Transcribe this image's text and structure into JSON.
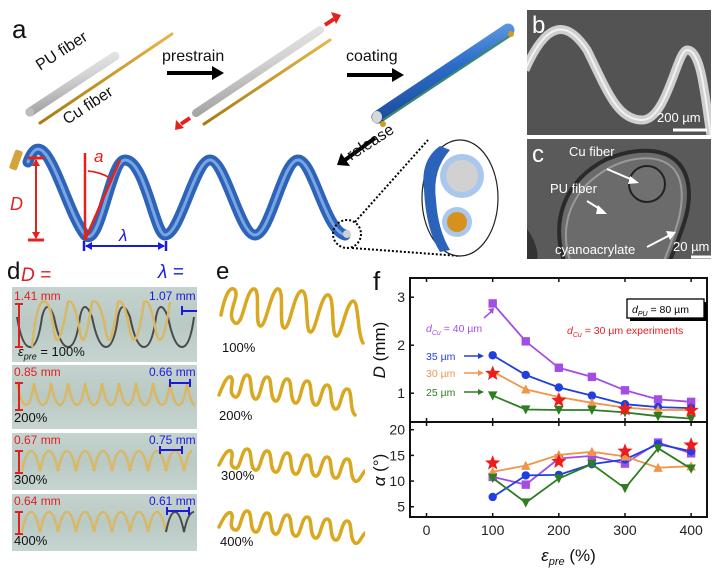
{
  "panel_a": {
    "letter": "a",
    "pu_label": "PU fiber",
    "cu_label": "Cu fiber",
    "step1": "prestrain",
    "step2": "coating",
    "step3": "release",
    "sym_D": "D",
    "sym_alpha": "a",
    "sym_lambda": "λ"
  },
  "panel_b": {
    "letter": "b",
    "scale": "200 µm"
  },
  "panel_c": {
    "letter": "c",
    "cu_label": "Cu fiber",
    "pu_label": "PU fiber",
    "glue_label": "cyanoacrylate",
    "scale": "20 µm"
  },
  "panel_d": {
    "letter": "d",
    "header_D": "D =",
    "header_lambda": "λ =",
    "eps_label_sym": "ε",
    "eps_label_sub": "pre",
    "eps_label_rest": " = 100%",
    "rows": [
      {
        "D": "1.41 mm",
        "lambda": "1.07 mm",
        "strain": "100%"
      },
      {
        "D": "0.85 mm",
        "lambda": "0.66 mm",
        "strain": "200%"
      },
      {
        "D": "0.67 mm",
        "lambda": "0.75 mm",
        "strain": "300%"
      },
      {
        "D": "0.64 mm",
        "lambda": "0.61 mm",
        "strain": "400%"
      }
    ]
  },
  "panel_e": {
    "letter": "e",
    "rows": [
      {
        "strain": "100%"
      },
      {
        "strain": "200%"
      },
      {
        "strain": "300%"
      },
      {
        "strain": "400%"
      }
    ]
  },
  "panel_f": {
    "letter": "f"
  },
  "chart_data": [
    {
      "type": "line",
      "title": "",
      "xlabel": "ε_pre (%)",
      "ylabel": "D (mm)",
      "xlim": [
        -25,
        424
      ],
      "ylim": [
        0.4,
        3.4
      ],
      "xticks": [
        0,
        100,
        200,
        300,
        400
      ],
      "yticks": [
        1,
        2,
        3
      ],
      "grid": false,
      "annotations": [
        "d_PU = 80 µm",
        "d_Cu = 30 µm experiments",
        "d_Cu = 40 µm",
        "35 µm",
        "30 µm",
        "25 µm"
      ],
      "x": [
        100,
        150,
        200,
        250,
        300,
        350,
        400
      ],
      "series": [
        {
          "name": "d_Cu = 40 µm",
          "color": "#a24ee6",
          "marker": "square",
          "values": [
            2.87,
            2.08,
            1.53,
            1.34,
            1.06,
            0.87,
            0.82
          ]
        },
        {
          "name": "35 µm",
          "color": "#1f3fe0",
          "marker": "circle",
          "values": [
            1.79,
            1.38,
            1.12,
            0.95,
            0.77,
            0.71,
            0.69
          ]
        },
        {
          "name": "30 µm",
          "color": "#f0954a",
          "marker": "triangle-up",
          "values": [
            1.45,
            1.08,
            0.92,
            0.8,
            0.7,
            0.65,
            0.65
          ]
        },
        {
          "name": "25 µm",
          "color": "#2e7d22",
          "marker": "triangle-down",
          "values": [
            0.95,
            0.66,
            0.65,
            0.65,
            0.6,
            0.52,
            0.47
          ]
        },
        {
          "name": "d_Cu = 30 µm experiments",
          "color": "#ee1c1c",
          "marker": "star",
          "line": false,
          "x": [
            100,
            200,
            300,
            400
          ],
          "values": [
            1.41,
            0.85,
            0.67,
            0.64
          ]
        }
      ]
    },
    {
      "type": "line",
      "title": "",
      "xlabel": "ε_pre (%)",
      "ylabel": "α (°)",
      "xlim": [
        -25,
        424
      ],
      "ylim": [
        3,
        21.5
      ],
      "xticks": [
        0,
        100,
        200,
        300,
        400
      ],
      "yticks": [
        5,
        10,
        15,
        20
      ],
      "grid": false,
      "x": [
        100,
        150,
        200,
        250,
        300,
        350,
        400
      ],
      "series": [
        {
          "name": "d_Cu = 40 µm",
          "color": "#a24ee6",
          "marker": "square",
          "values": [
            10.8,
            9.3,
            14.4,
            14.9,
            13.4,
            17.5,
            15.4
          ]
        },
        {
          "name": "35 µm",
          "color": "#1f3fe0",
          "marker": "circle",
          "values": [
            6.9,
            11.1,
            11.2,
            13.3,
            14.2,
            17.2,
            15.8
          ]
        },
        {
          "name": "30 µm",
          "color": "#f0954a",
          "marker": "triangle-up",
          "values": [
            11.8,
            13.0,
            15.1,
            15.7,
            14.8,
            12.6,
            12.9
          ]
        },
        {
          "name": "25 µm",
          "color": "#2e7d22",
          "marker": "triangle-down",
          "values": [
            10.6,
            5.8,
            10.5,
            13.3,
            8.6,
            16.4,
            12.4
          ]
        },
        {
          "name": "d_Cu = 30 µm experiments",
          "color": "#ee1c1c",
          "marker": "star",
          "line": false,
          "x": [
            100,
            200,
            300,
            400
          ],
          "values": [
            13.5,
            13.8,
            15.8,
            17.0
          ]
        }
      ]
    }
  ]
}
